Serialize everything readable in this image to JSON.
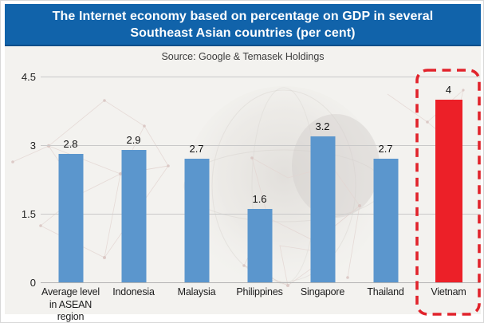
{
  "title": {
    "line1": "The Internet economy based on percentage on GDP in several",
    "line2": "Southeast Asian countries (per cent)"
  },
  "source": "Source: Google & Temasek Holdings",
  "chart_data": {
    "type": "bar",
    "title": "The Internet economy based on percentage on GDP in several Southeast Asian countries (per cent)",
    "source": "Source: Google & Temasek Holdings",
    "categories": [
      "Average level\nin ASEAN region",
      "Indonesia",
      "Malaysia",
      "Philippines",
      "Singapore",
      "Thailand",
      "Vietnam"
    ],
    "values": [
      2.8,
      2.9,
      2.7,
      1.6,
      3.2,
      2.7,
      4
    ],
    "xlabel": "",
    "ylabel": "",
    "ylim": [
      0,
      4.5
    ],
    "yticks": [
      0,
      1.5,
      3,
      4.5
    ],
    "grid": true,
    "legend": false,
    "bar_color": "#5b96cd",
    "highlight_index": 6,
    "highlight_color": "#ec2028",
    "highlight_box_color": "#e1232b"
  },
  "colors": {
    "title_bg": "#1163aa",
    "title_text": "#ffffff",
    "panel_bg": "#f3f2ef",
    "gridline": "#c9c9c9",
    "axis_text": "#222222"
  }
}
